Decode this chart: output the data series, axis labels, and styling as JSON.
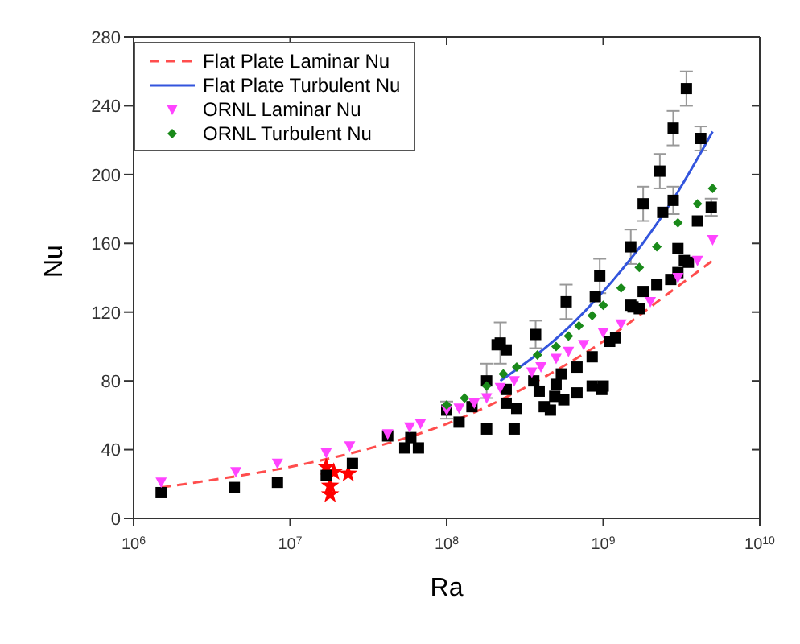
{
  "chart_data": {
    "type": "scatter",
    "xlabel": "Ra",
    "ylabel": "Nu",
    "log": "x",
    "legend": "top left",
    "xlim": [
      1000000,
      10000000000
    ],
    "xticks": [
      {
        "value": 1000000,
        "label": "10$^{6}$"
      },
      {
        "value": 10000000,
        "label": "10$^{7}$"
      },
      {
        "value": 100000000,
        "label": "10$^{8}$"
      },
      {
        "value": 1000000000,
        "label": "10$^{9}$"
      },
      {
        "value": 10000000000,
        "label": "10$^{10}$"
      }
    ],
    "ylim": [
      0,
      280
    ],
    "yticks": [
      0,
      40,
      80,
      120,
      160,
      200,
      240,
      280
    ],
    "series": [
      {
        "marker": "star",
        "color": "#ff0000",
        "x": [
          17000000,
          19000000,
          18000000,
          18000000,
          23500000
        ],
        "values": [
          30,
          27,
          19,
          14,
          26
        ]
      },
      {
        "marker": "square",
        "color": "#000000",
        "x": [
          1500000,
          4400000,
          8300000,
          17000000,
          25000000,
          42000000,
          54000000,
          59000000,
          66000000,
          100000000,
          120000000,
          145000000,
          180000000,
          180000000,
          210000000,
          240000000,
          240000000,
          240000000,
          280000000,
          270000000,
          360000000,
          390000000,
          420000000,
          460000000,
          490000000,
          500000000,
          540000000,
          560000000,
          680000000,
          680000000,
          850000000,
          980000000,
          850000000,
          1100000000,
          220000000,
          370000000,
          580000000,
          890000000,
          950000000,
          1500000000,
          1800000000,
          2300000000,
          2400000000,
          2800000000,
          3000000000,
          3300000000,
          3000000000,
          2700000000,
          2200000000,
          1800000000,
          1700000000,
          1500000000,
          1550000000,
          1200000000,
          1000000000,
          4000000000,
          4900000000,
          3500000000,
          2800000000,
          3400000000,
          4200000000
        ],
        "values": [
          15,
          18,
          21,
          25,
          32,
          48,
          41,
          47,
          41,
          63,
          56,
          65,
          52,
          80,
          101,
          98,
          75,
          67,
          64,
          52,
          80,
          74,
          65,
          63,
          71,
          78,
          84,
          69,
          88,
          73,
          77,
          75,
          94,
          103,
          102,
          107,
          126,
          129,
          141,
          158,
          183,
          202,
          178,
          185,
          157,
          150,
          143,
          139,
          136,
          132,
          122,
          124,
          123,
          105,
          77,
          173,
          181,
          149,
          227,
          250,
          221
        ],
        "errors": [
          null,
          null,
          null,
          null,
          null,
          null,
          null,
          null,
          null,
          5,
          null,
          null,
          null,
          10,
          null,
          null,
          null,
          null,
          null,
          null,
          null,
          null,
          null,
          null,
          null,
          null,
          null,
          null,
          null,
          null,
          null,
          null,
          null,
          null,
          12,
          8,
          10,
          null,
          10,
          10,
          10,
          10,
          null,
          8,
          null,
          null,
          null,
          null,
          null,
          null,
          null,
          null,
          null,
          null,
          null,
          null,
          5,
          null,
          10,
          10,
          7
        ]
      },
      {
        "type": "line",
        "name": "Flat Plate Laminar Nu",
        "color": "#ff4d4d",
        "line_style": "dashed",
        "marker": "none",
        "x": [
          1500000,
          3000000,
          10000000,
          30000000,
          100000000,
          300000000,
          1000000000,
          3000000000,
          5000000000
        ],
        "values": [
          18,
          22,
          30,
          40,
          55,
          75,
          103,
          135,
          150
        ]
      },
      {
        "type": "line",
        "name": "Flat Plate Turbulent Nu",
        "color": "#3355dd",
        "line_style": "solid",
        "marker": "none",
        "x": [
          220000000,
          600000000,
          1000000000,
          2000000000,
          3000000000,
          5000000000
        ],
        "values": [
          80,
          111,
          132,
          166,
          190,
          225
        ]
      },
      {
        "name": "ORNL Laminar Nu",
        "marker": "triangle",
        "color": "#ff44ff",
        "x": [
          1500000,
          4500000,
          8300000,
          17000000,
          24000000,
          42000000,
          58000000,
          68000000,
          100000000,
          120000000,
          150000000,
          180000000,
          220000000,
          270000000,
          350000000,
          400000000,
          500000000,
          600000000,
          750000000,
          1000000000,
          1300000000,
          2000000000,
          3000000000,
          4000000000,
          5000000000
        ],
        "values": [
          21,
          27,
          32,
          38,
          42,
          49,
          53,
          55,
          63,
          64,
          67,
          70,
          76,
          80,
          85,
          88,
          93,
          97,
          101,
          108,
          113,
          126,
          140,
          150,
          162
        ]
      },
      {
        "name": "ORNL Turbulent Nu",
        "marker": "diamond",
        "color": "#1a8a1a",
        "x": [
          100000000,
          130000000,
          180000000,
          230000000,
          280000000,
          380000000,
          500000000,
          600000000,
          700000000,
          850000000,
          1000000000,
          1300000000,
          1700000000,
          2200000000,
          3000000000,
          4000000000,
          5000000000
        ],
        "values": [
          66,
          70,
          77,
          84,
          88,
          95,
          100,
          106,
          112,
          118,
          124,
          134,
          146,
          158,
          172,
          183,
          192
        ]
      }
    ]
  }
}
